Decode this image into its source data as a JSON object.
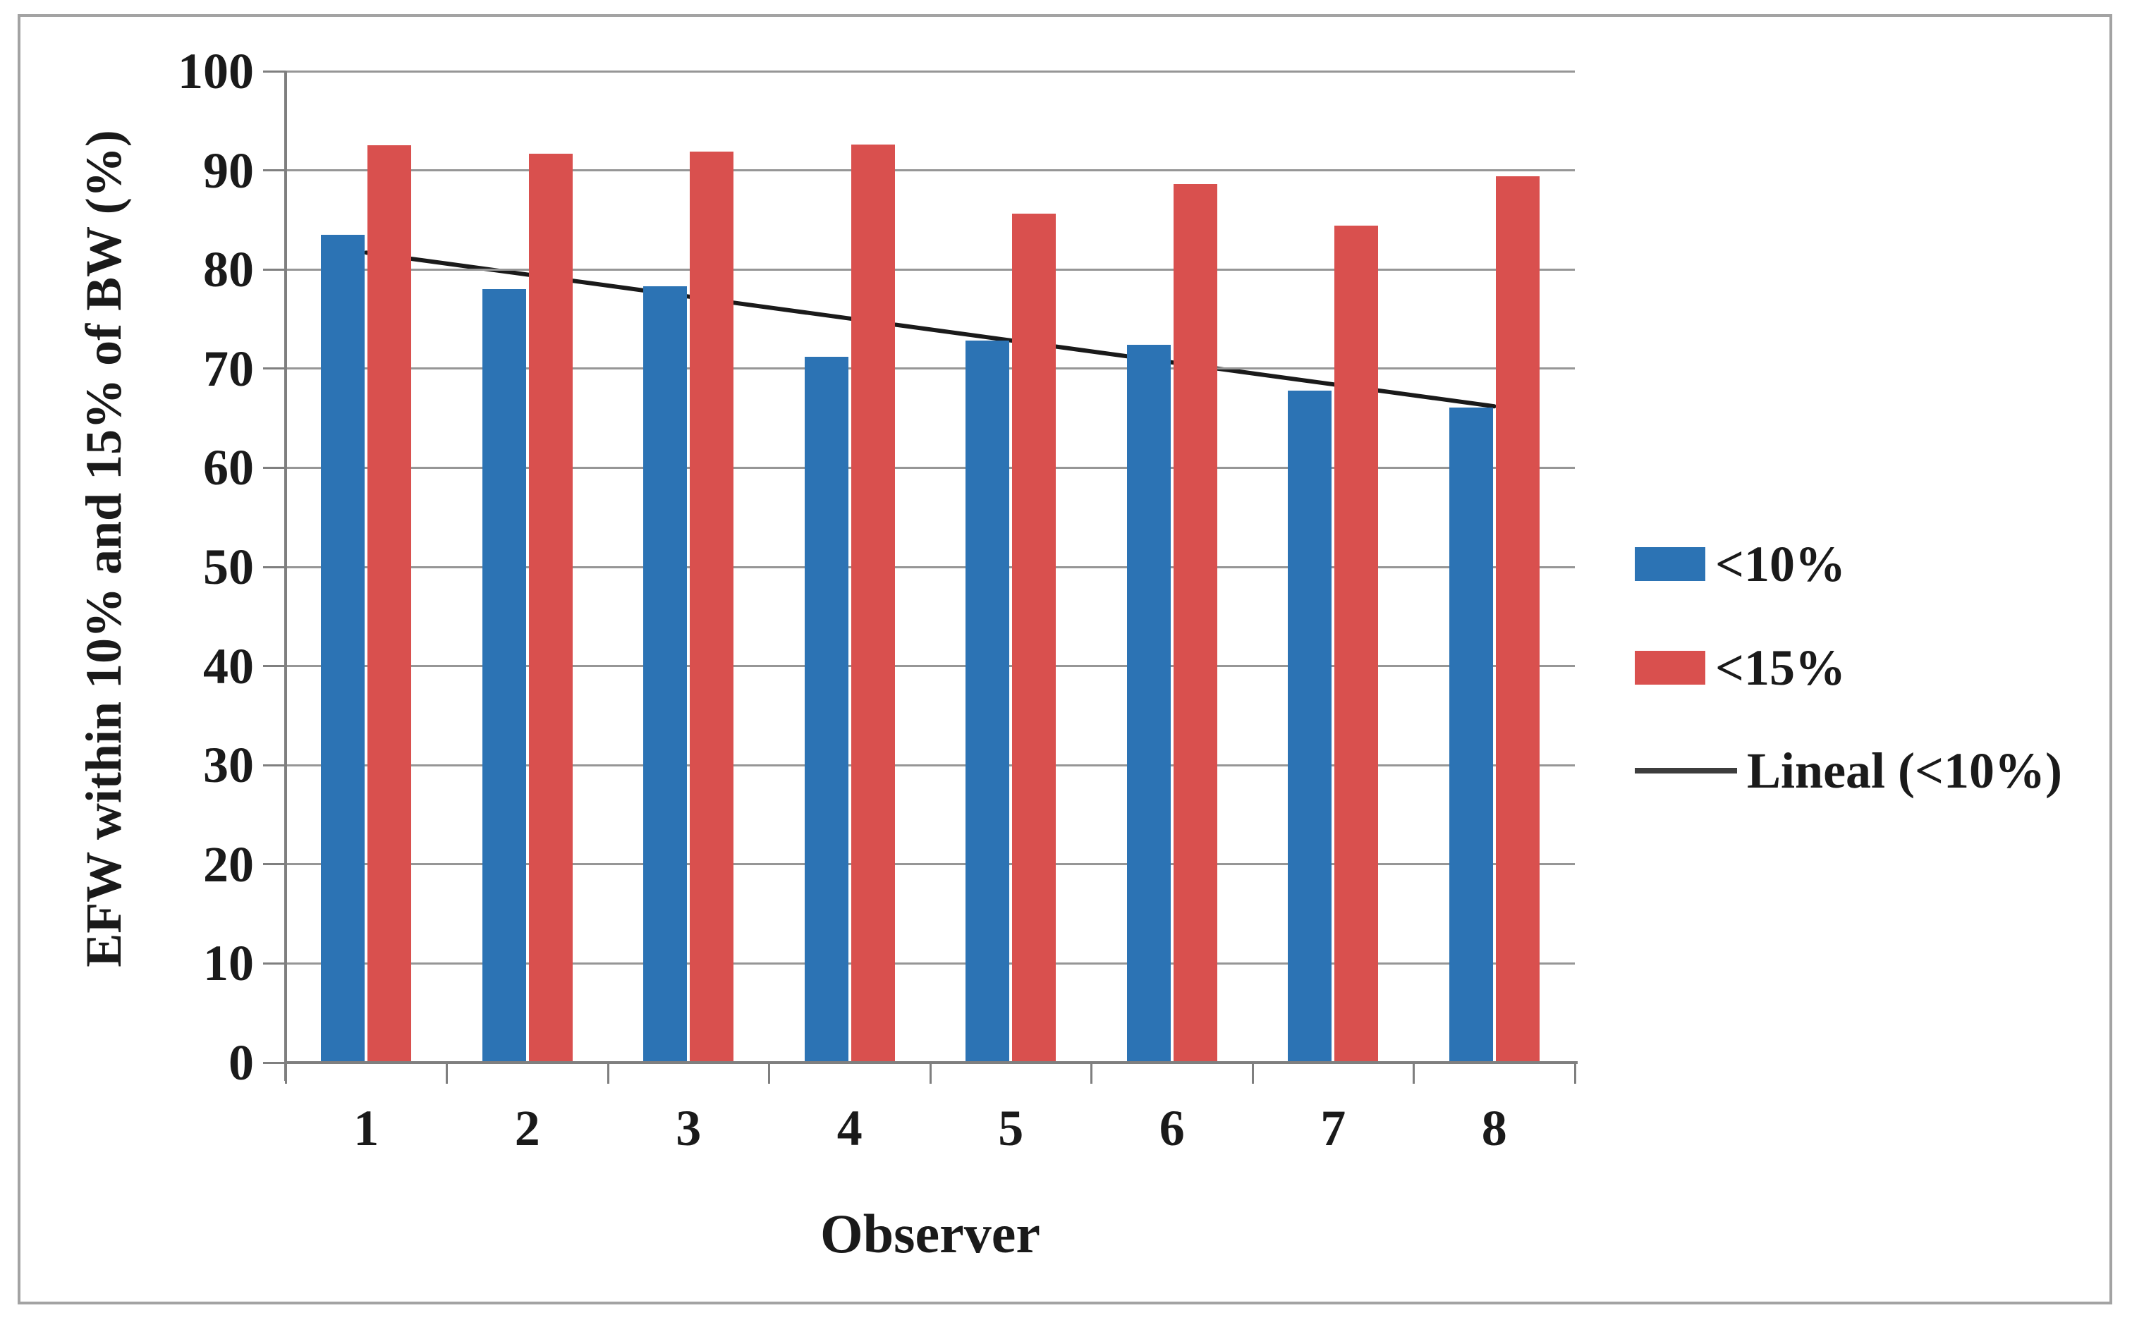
{
  "chart_data": {
    "type": "bar",
    "title": "",
    "xlabel": "Observer",
    "ylabel": "EFW within 10% and 15% of BW (%)",
    "categories": [
      "1",
      "2",
      "3",
      "4",
      "5",
      "6",
      "7",
      "8"
    ],
    "series": [
      {
        "name": "<10%",
        "color": "#2C73B4",
        "values": [
          83.5,
          78.0,
          78.3,
          71.2,
          72.8,
          72.4,
          67.8,
          66.1
        ]
      },
      {
        "name": "<15%",
        "color": "#D9504E",
        "values": [
          92.5,
          91.7,
          91.9,
          92.6,
          85.6,
          88.6,
          84.4,
          89.4
        ]
      }
    ],
    "trendline": {
      "name": "Lineal (<10%)",
      "color": "#1a1a1a",
      "start_value": 81.7,
      "end_value": 66.2
    },
    "ylim": [
      0,
      100
    ],
    "yticks": [
      0,
      10,
      20,
      30,
      40,
      50,
      60,
      70,
      80,
      90,
      100
    ],
    "grid": "horizontal",
    "legend_position": "right",
    "grid_color": "#969696",
    "axis_color": "#7f7f7f"
  }
}
